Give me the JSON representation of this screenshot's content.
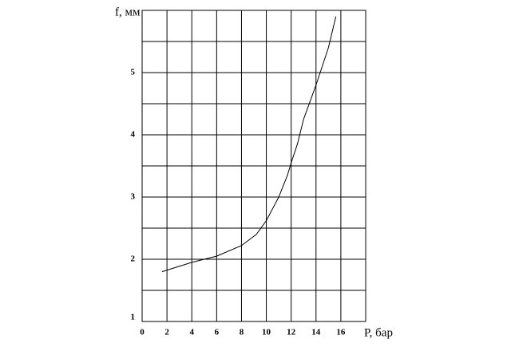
{
  "chart_data": {
    "type": "line",
    "x_label": "P, бар",
    "y_label": "f, мм",
    "x": [
      1.6,
      4,
      6,
      8,
      9.2,
      10,
      11,
      11.7,
      12,
      12.5,
      13,
      14,
      15,
      15.6
    ],
    "values": [
      1.8,
      1.95,
      2.05,
      2.22,
      2.4,
      2.62,
      3.0,
      3.35,
      3.55,
      3.85,
      4.25,
      4.8,
      5.4,
      5.9
    ],
    "color": "#000000",
    "xlim": [
      0,
      18
    ],
    "xticks": [
      0,
      2,
      4,
      6,
      8,
      10,
      12,
      14,
      16
    ],
    "ylim": [
      1,
      6
    ],
    "yticks": [
      1,
      2,
      3,
      4,
      5
    ],
    "y_minor_grid": [
      1.5,
      2.5,
      3.5,
      4.5,
      5.5
    ],
    "grid": true
  }
}
